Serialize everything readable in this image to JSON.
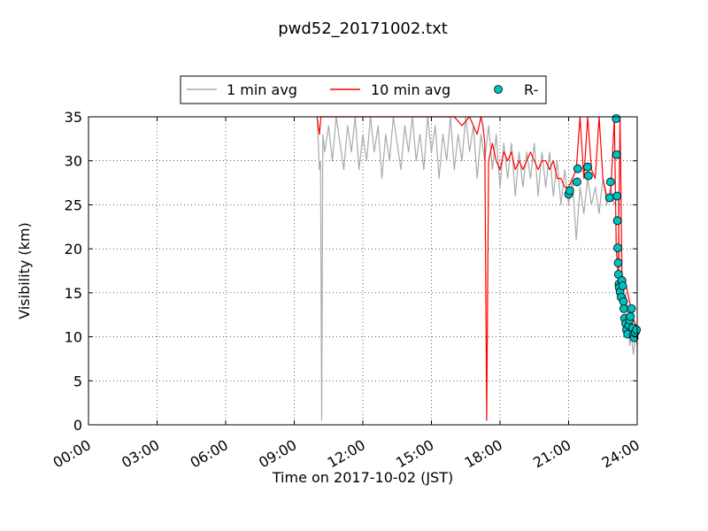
{
  "chart_data": {
    "type": "line",
    "title": "pwd52_20171002.txt",
    "xlabel": "Time on 2017-10-02 (JST)",
    "ylabel": "Visibility (km)",
    "xlim": [
      "00:00",
      "24:00"
    ],
    "ylim": [
      0,
      35
    ],
    "x_ticks": [
      "00:00",
      "03:00",
      "06:00",
      "09:00",
      "12:00",
      "15:00",
      "18:00",
      "21:00",
      "24:00"
    ],
    "y_ticks": [
      "0",
      "5",
      "10",
      "15",
      "20",
      "25",
      "30",
      "35"
    ],
    "grid": true,
    "legend_position": "top-center",
    "series": [
      {
        "name": "1 min avg",
        "style": "line",
        "color": "#aaaaaa",
        "points": [
          [
            "10:00",
            35
          ],
          [
            "10:06",
            29
          ],
          [
            "10:09",
            30
          ],
          [
            "10:12",
            0.5
          ],
          [
            "10:15",
            33
          ],
          [
            "10:20",
            31
          ],
          [
            "10:30",
            34
          ],
          [
            "10:40",
            30
          ],
          [
            "10:50",
            35
          ],
          [
            "11:00",
            32
          ],
          [
            "11:10",
            29
          ],
          [
            "11:20",
            34
          ],
          [
            "11:30",
            31
          ],
          [
            "11:40",
            35
          ],
          [
            "11:50",
            29
          ],
          [
            "12:00",
            33
          ],
          [
            "12:10",
            30
          ],
          [
            "12:20",
            35
          ],
          [
            "12:30",
            31
          ],
          [
            "12:40",
            34
          ],
          [
            "12:50",
            28
          ],
          [
            "13:00",
            33
          ],
          [
            "13:10",
            30
          ],
          [
            "13:20",
            35
          ],
          [
            "13:30",
            32
          ],
          [
            "13:40",
            29
          ],
          [
            "13:50",
            34
          ],
          [
            "14:00",
            31
          ],
          [
            "14:10",
            35
          ],
          [
            "14:20",
            30
          ],
          [
            "14:30",
            33
          ],
          [
            "14:40",
            29
          ],
          [
            "14:50",
            35
          ],
          [
            "15:00",
            31
          ],
          [
            "15:10",
            34
          ],
          [
            "15:20",
            28
          ],
          [
            "15:30",
            33
          ],
          [
            "15:40",
            30
          ],
          [
            "15:50",
            35
          ],
          [
            "16:00",
            29
          ],
          [
            "16:10",
            33
          ],
          [
            "16:20",
            30
          ],
          [
            "16:30",
            35
          ],
          [
            "16:40",
            31
          ],
          [
            "16:50",
            34
          ],
          [
            "17:00",
            28
          ],
          [
            "17:10",
            33
          ],
          [
            "17:20",
            30
          ],
          [
            "17:30",
            34
          ],
          [
            "17:40",
            29
          ],
          [
            "17:50",
            33
          ],
          [
            "18:00",
            27
          ],
          [
            "18:10",
            32
          ],
          [
            "18:20",
            28
          ],
          [
            "18:30",
            32
          ],
          [
            "18:40",
            26
          ],
          [
            "18:50",
            31
          ],
          [
            "19:00",
            27
          ],
          [
            "19:10",
            31
          ],
          [
            "19:20",
            28
          ],
          [
            "19:30",
            32
          ],
          [
            "19:40",
            26
          ],
          [
            "19:50",
            31
          ],
          [
            "20:00",
            27
          ],
          [
            "20:10",
            31
          ],
          [
            "20:20",
            26
          ],
          [
            "20:30",
            30
          ],
          [
            "20:40",
            25
          ],
          [
            "20:50",
            29
          ],
          [
            "21:00",
            25
          ],
          [
            "21:10",
            28
          ],
          [
            "21:20",
            21
          ],
          [
            "21:30",
            27
          ],
          [
            "21:40",
            24
          ],
          [
            "21:50",
            28
          ],
          [
            "22:00",
            25
          ],
          [
            "22:10",
            27
          ],
          [
            "22:20",
            24
          ],
          [
            "22:30",
            28
          ],
          [
            "22:40",
            25
          ],
          [
            "22:50",
            27
          ],
          [
            "23:00",
            25
          ],
          [
            "23:10",
            26
          ],
          [
            "23:15",
            16
          ],
          [
            "23:20",
            15
          ],
          [
            "23:25",
            14
          ],
          [
            "23:30",
            15
          ],
          [
            "23:35",
            13
          ],
          [
            "23:40",
            9
          ],
          [
            "23:45",
            10
          ],
          [
            "23:50",
            8
          ],
          [
            "23:55",
            10
          ],
          [
            "24:00",
            9
          ]
        ]
      },
      {
        "name": "10 min avg",
        "style": "line",
        "color": "#ff0000",
        "points": [
          [
            "10:00",
            35
          ],
          [
            "10:06",
            33
          ],
          [
            "10:10",
            35
          ],
          [
            "16:00",
            35
          ],
          [
            "16:20",
            34
          ],
          [
            "16:40",
            35
          ],
          [
            "17:00",
            33
          ],
          [
            "17:10",
            35
          ],
          [
            "17:15",
            34
          ],
          [
            "17:20",
            32
          ],
          [
            "17:25",
            0.5
          ],
          [
            "17:30",
            30
          ],
          [
            "17:40",
            32
          ],
          [
            "17:50",
            30
          ],
          [
            "18:00",
            29
          ],
          [
            "18:10",
            31
          ],
          [
            "18:20",
            30
          ],
          [
            "18:30",
            31
          ],
          [
            "18:40",
            29
          ],
          [
            "18:50",
            30
          ],
          [
            "19:00",
            29
          ],
          [
            "19:10",
            30
          ],
          [
            "19:20",
            31
          ],
          [
            "19:30",
            30
          ],
          [
            "19:40",
            29
          ],
          [
            "19:50",
            30
          ],
          [
            "20:00",
            30
          ],
          [
            "20:10",
            29
          ],
          [
            "20:20",
            30
          ],
          [
            "20:30",
            28
          ],
          [
            "20:40",
            28
          ],
          [
            "20:50",
            27
          ],
          [
            "21:00",
            27
          ],
          [
            "21:10",
            28
          ],
          [
            "21:20",
            29
          ],
          [
            "21:30",
            35
          ],
          [
            "21:40",
            28
          ],
          [
            "21:50",
            35
          ],
          [
            "22:00",
            29
          ],
          [
            "22:10",
            28
          ],
          [
            "22:20",
            35
          ],
          [
            "22:30",
            28
          ],
          [
            "22:40",
            26
          ],
          [
            "22:50",
            26
          ],
          [
            "23:00",
            35
          ],
          [
            "23:05",
            20
          ],
          [
            "23:10",
            17
          ],
          [
            "23:15",
            35
          ],
          [
            "23:20",
            17
          ],
          [
            "23:30",
            16
          ],
          [
            "23:40",
            14
          ],
          [
            "23:50",
            12
          ],
          [
            "24:00",
            11
          ]
        ]
      },
      {
        "name": "R-",
        "style": "marker",
        "color": "#00bfbf",
        "points": [
          [
            "21:00",
            26.2
          ],
          [
            "21:03",
            26.6
          ],
          [
            "21:22",
            27.6
          ],
          [
            "21:24",
            29.1
          ],
          [
            "21:50",
            29.3
          ],
          [
            "21:52",
            28.3
          ],
          [
            "22:50",
            27.6
          ],
          [
            "22:48",
            25.8
          ],
          [
            "23:05",
            34.8
          ],
          [
            "23:06",
            30.7
          ],
          [
            "23:07",
            26
          ],
          [
            "23:08",
            23.2
          ],
          [
            "23:09",
            20.1
          ],
          [
            "23:10",
            18.4
          ],
          [
            "23:11",
            17.1
          ],
          [
            "23:12",
            16
          ],
          [
            "23:13",
            15.6
          ],
          [
            "23:15",
            15.1
          ],
          [
            "23:18",
            14.5
          ],
          [
            "23:20",
            16.4
          ],
          [
            "23:22",
            15.8
          ],
          [
            "23:24",
            14
          ],
          [
            "23:25",
            13.2
          ],
          [
            "23:27",
            12.1
          ],
          [
            "23:30",
            11.5
          ],
          [
            "23:32",
            10.8
          ],
          [
            "23:35",
            10.3
          ],
          [
            "23:38",
            11.3
          ],
          [
            "23:40",
            11.9
          ],
          [
            "23:42",
            12.3
          ],
          [
            "23:45",
            13.2
          ],
          [
            "23:48",
            11
          ],
          [
            "23:50",
            10.2
          ],
          [
            "23:52",
            9.9
          ],
          [
            "23:55",
            10.5
          ],
          [
            "23:58",
            10.8
          ]
        ]
      }
    ]
  }
}
